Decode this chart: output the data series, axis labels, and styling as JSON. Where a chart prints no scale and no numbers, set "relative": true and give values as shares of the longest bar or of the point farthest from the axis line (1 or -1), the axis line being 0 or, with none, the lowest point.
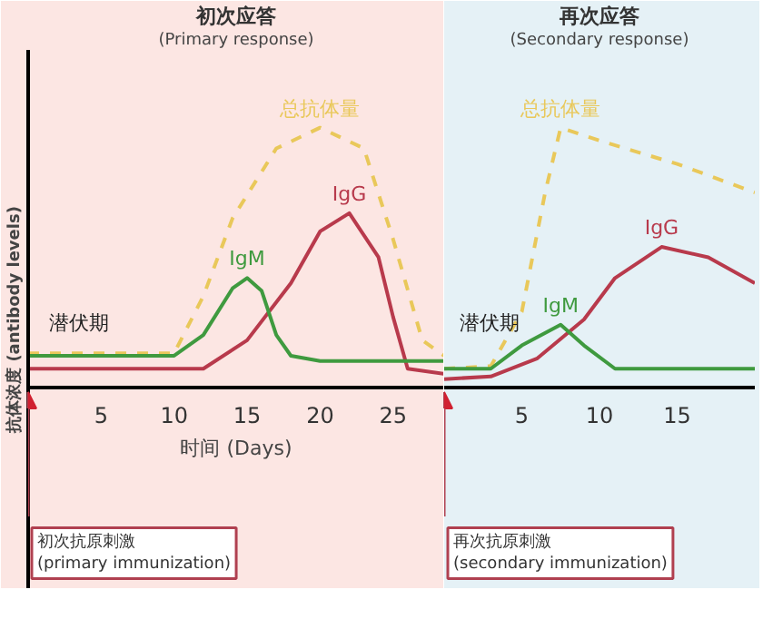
{
  "chart_data": [
    {
      "type": "line",
      "title": "初次应答",
      "subtitle": "(Primary response)",
      "xlabel": "时间 (Days)",
      "ylabel": "抗体浓度 (antibody levels)",
      "relative": true,
      "xlim": [
        0,
        28.5
      ],
      "xticks": [
        5,
        10,
        15,
        20,
        25
      ],
      "tick_labels": "x",
      "legend": false,
      "bands": [
        {
          "axis": "x",
          "from": 0,
          "to": 28.5,
          "color": "#fce6e3"
        }
      ],
      "annotations": [
        "潜伏期",
        "初次抗原刺激\n(primary immunization)"
      ],
      "series": [
        {
          "name": "总抗体量",
          "color": "#e9c85a",
          "line_style": "dashed",
          "x": [
            0,
            10,
            12,
            14,
            17,
            20,
            23,
            25,
            27,
            28.5
          ],
          "values": [
            0.13,
            0.13,
            0.35,
            0.65,
            0.92,
            1.0,
            0.92,
            0.57,
            0.18,
            0.12
          ]
        },
        {
          "name": "IgG",
          "color": "#b83a4c",
          "x": [
            0,
            12,
            15,
            18,
            20,
            22,
            24,
            25,
            26,
            28.5
          ],
          "values": [
            0.07,
            0.07,
            0.18,
            0.4,
            0.6,
            0.67,
            0.5,
            0.27,
            0.07,
            0.05
          ]
        },
        {
          "name": "IgM",
          "color": "#3f9a3f",
          "x": [
            0,
            10,
            12,
            14,
            15,
            16,
            17,
            18,
            20,
            28.5
          ],
          "values": [
            0.12,
            0.12,
            0.2,
            0.38,
            0.42,
            0.37,
            0.2,
            0.12,
            0.1,
            0.1
          ]
        }
      ]
    },
    {
      "type": "line",
      "title": "再次应答",
      "subtitle": "(Secondary response)",
      "relative": true,
      "xlim": [
        0,
        20
      ],
      "xticks": [
        5,
        10,
        15
      ],
      "tick_labels": "x",
      "legend": false,
      "bands": [
        {
          "axis": "x",
          "from": 0,
          "to": 20,
          "color": "#e5f1f6"
        }
      ],
      "annotations": [
        "潜伏期",
        "再次抗原刺激\n(secondary immunization)"
      ],
      "series": [
        {
          "name": "总抗体量",
          "color": "#e9c85a",
          "line_style": "dashed",
          "x": [
            0,
            3,
            5,
            6.5,
            7.5,
            10,
            15,
            20
          ],
          "values": [
            0.07,
            0.08,
            0.29,
            0.75,
            1.0,
            0.95,
            0.86,
            0.75
          ]
        },
        {
          "name": "IgG",
          "color": "#b83a4c",
          "x": [
            0,
            3,
            6,
            9,
            11,
            14,
            17,
            20
          ],
          "values": [
            0.03,
            0.04,
            0.11,
            0.26,
            0.42,
            0.54,
            0.5,
            0.4
          ]
        },
        {
          "name": "IgM",
          "color": "#3f9a3f",
          "x": [
            0,
            3,
            5,
            7.5,
            9,
            11,
            15,
            20
          ],
          "values": [
            0.07,
            0.07,
            0.16,
            0.24,
            0.16,
            0.07,
            0.07,
            0.07
          ]
        }
      ]
    }
  ]
}
